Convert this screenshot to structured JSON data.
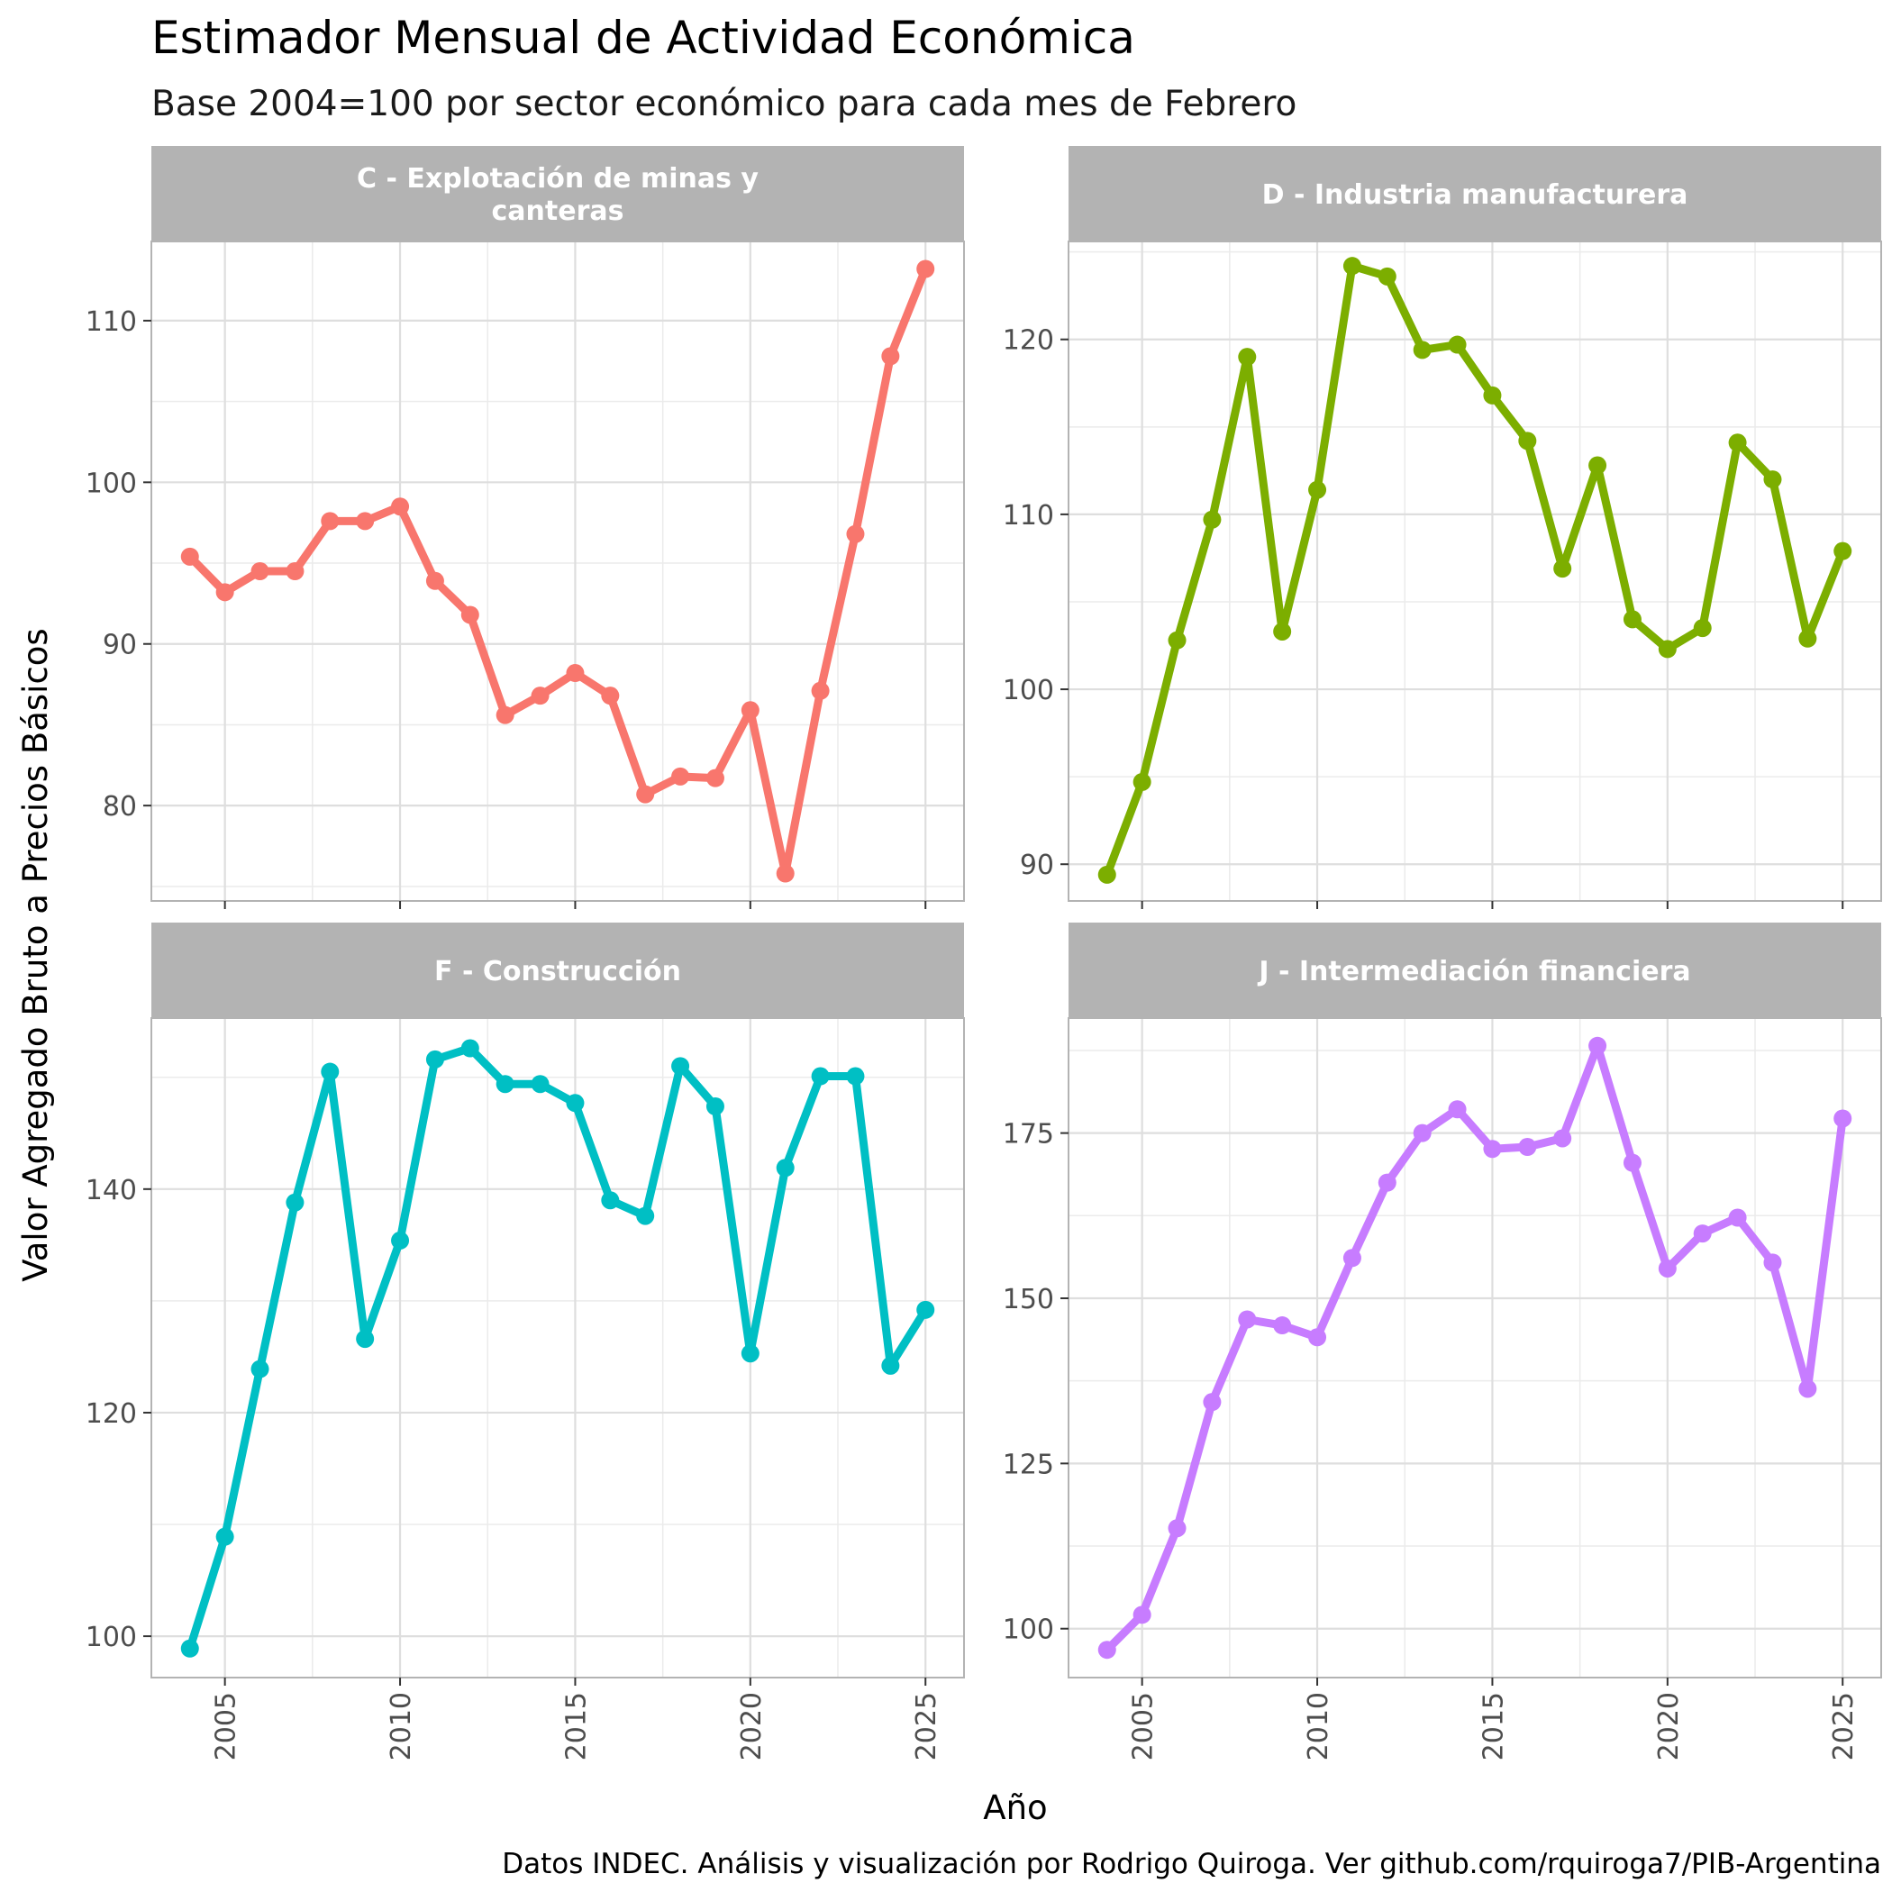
{
  "title": "Estimador Mensual de Actividad Económica",
  "subtitle": "Base 2004=100 por sector económico para cada mes de Febrero",
  "ylabel": "Valor Agregado Bruto a Precios Básicos",
  "xlabel": "Año",
  "caption": "Datos INDEC. Análisis y visualización por Rodrigo Quiroga. Ver github.com/rquiroga7/PIB-Argentina",
  "chart_data": [
    {
      "type": "line",
      "panel": "C - Explotación de minas y canteras",
      "panel_lines": [
        "C - Explotación de minas y",
        "canteras"
      ],
      "color": "#F8766D",
      "x": [
        2004,
        2005,
        2006,
        2007,
        2008,
        2009,
        2010,
        2011,
        2012,
        2013,
        2014,
        2015,
        2016,
        2017,
        2018,
        2019,
        2020,
        2021,
        2022,
        2023,
        2024,
        2025
      ],
      "values": [
        95.4,
        93.2,
        94.5,
        94.5,
        97.6,
        97.6,
        98.5,
        93.9,
        91.8,
        85.6,
        86.8,
        88.2,
        86.8,
        80.7,
        81.8,
        81.7,
        85.9,
        75.8,
        87.1,
        96.8,
        107.8,
        113.2
      ],
      "xlim": [
        2002.9,
        2026.1
      ],
      "ylim": [
        74.1,
        114.9
      ],
      "yticks": [
        80,
        90,
        100,
        110
      ],
      "ytick_labels": [
        "80",
        "90",
        "100",
        "110"
      ],
      "yminor": [
        75,
        85,
        95,
        105
      ]
    },
    {
      "type": "line",
      "panel": "D - Industria manufacturera",
      "panel_lines": [
        "D - Industria manufacturera"
      ],
      "color": "#7CAE00",
      "x": [
        2004,
        2005,
        2006,
        2007,
        2008,
        2009,
        2010,
        2011,
        2012,
        2013,
        2014,
        2015,
        2016,
        2017,
        2018,
        2019,
        2020,
        2021,
        2022,
        2023,
        2024,
        2025
      ],
      "values": [
        89.4,
        94.7,
        102.8,
        109.7,
        119.0,
        103.3,
        111.4,
        124.2,
        123.6,
        119.4,
        119.7,
        116.8,
        114.2,
        106.9,
        112.8,
        104.0,
        102.3,
        103.5,
        114.1,
        112.0,
        102.9,
        107.9
      ],
      "xlim": [
        2002.9,
        2026.1
      ],
      "ylim": [
        87.9,
        125.6
      ],
      "yticks": [
        90,
        100,
        110,
        120
      ],
      "ytick_labels": [
        "90",
        "100",
        "110",
        "120"
      ],
      "yminor": [
        95,
        105,
        115,
        125
      ]
    },
    {
      "type": "line",
      "panel": "F - Construcción",
      "panel_lines": [
        "F - Construcción"
      ],
      "color": "#00BFC4",
      "x": [
        2004,
        2005,
        2006,
        2007,
        2008,
        2009,
        2010,
        2011,
        2012,
        2013,
        2014,
        2015,
        2016,
        2017,
        2018,
        2019,
        2020,
        2021,
        2022,
        2023,
        2024,
        2025
      ],
      "values": [
        98.9,
        108.9,
        123.9,
        138.8,
        150.5,
        126.6,
        135.4,
        151.6,
        152.6,
        149.4,
        149.4,
        147.7,
        139.0,
        137.6,
        151.0,
        147.4,
        125.3,
        141.9,
        150.1,
        150.1,
        124.2,
        129.2
      ],
      "xlim": [
        2002.9,
        2026.1
      ],
      "ylim": [
        96.3,
        155.3
      ],
      "yticks": [
        100,
        120,
        140
      ],
      "ytick_labels": [
        "100",
        "120",
        "140"
      ],
      "yminor": [
        110,
        130,
        150
      ]
    },
    {
      "type": "line",
      "panel": "J - Intermediación financiera",
      "panel_lines": [
        "J - Intermediación financiera"
      ],
      "color": "#C77CFF",
      "x": [
        2004,
        2005,
        2006,
        2007,
        2008,
        2009,
        2010,
        2011,
        2012,
        2013,
        2014,
        2015,
        2016,
        2017,
        2018,
        2019,
        2020,
        2021,
        2022,
        2023,
        2024,
        2025
      ],
      "values": [
        96.8,
        102.1,
        115.2,
        134.3,
        146.8,
        145.9,
        144.1,
        156.1,
        167.5,
        175.0,
        178.6,
        172.6,
        172.9,
        174.2,
        188.2,
        170.5,
        154.5,
        159.8,
        162.2,
        155.4,
        136.3,
        177.2
      ],
      "xlim": [
        2002.9,
        2026.1
      ],
      "ylim": [
        92.6,
        192.4
      ],
      "yticks": [
        100,
        125,
        150,
        175
      ],
      "ytick_labels": [
        "100",
        "125",
        "150",
        "175"
      ],
      "yminor": [
        112.5,
        137.5,
        162.5,
        187.5
      ]
    }
  ],
  "xticks": [
    2005,
    2010,
    2015,
    2020,
    2025
  ],
  "xtick_labels": [
    "2005",
    "2010",
    "2015",
    "2020",
    "2025"
  ],
  "xminor": [
    2007.5,
    2012.5,
    2017.5,
    2022.5
  ]
}
